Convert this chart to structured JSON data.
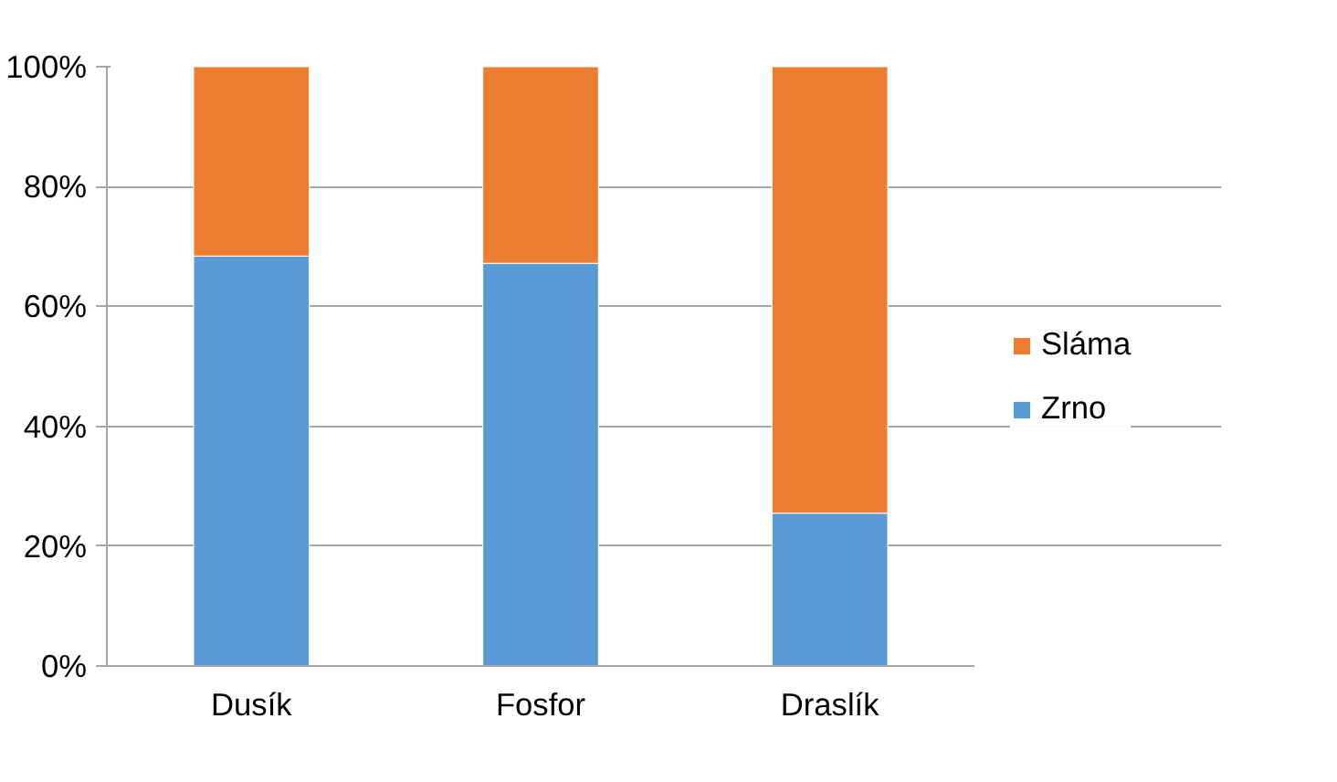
{
  "chart_data": {
    "type": "bar",
    "stacked": true,
    "categories": [
      "Dusík",
      "Fosfor",
      "Draslík"
    ],
    "series": [
      {
        "name": "Zrno",
        "color": "#5b9bd5",
        "values": [
          68.4,
          67.2,
          25.5
        ]
      },
      {
        "name": "Sláma",
        "color": "#ed7d31",
        "values": [
          31.6,
          32.8,
          74.5
        ]
      }
    ],
    "ylim": [
      0,
      100
    ],
    "yticks": [
      {
        "value": 0,
        "label": "0%"
      },
      {
        "value": 20,
        "label": "20%"
      },
      {
        "value": 40,
        "label": "40%"
      },
      {
        "value": 60,
        "label": "60%"
      },
      {
        "value": 80,
        "label": "80%"
      },
      {
        "value": 100,
        "label": "100%"
      }
    ],
    "grid": "y",
    "legend": "right"
  }
}
